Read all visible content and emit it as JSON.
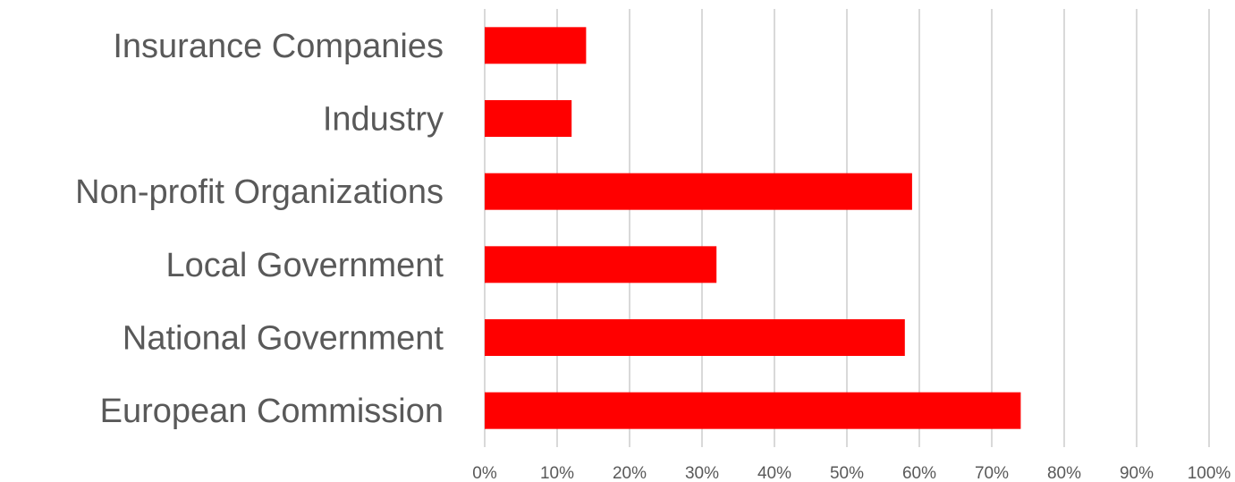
{
  "chart_data": {
    "type": "bar",
    "orientation": "horizontal",
    "categories": [
      "Insurance Companies",
      "Industry",
      "Non-profit Organizations",
      "Local Government",
      "National Government",
      "European Commission"
    ],
    "values": [
      14,
      12,
      59,
      32,
      58,
      74
    ],
    "unit": "%",
    "xlim": [
      0,
      100
    ],
    "x_ticks": [
      "0%",
      "10%",
      "20%",
      "30%",
      "40%",
      "50%",
      "60%",
      "70%",
      "80%",
      "90%",
      "100%"
    ],
    "grid": true,
    "legend": false,
    "bar_color": "#ff0000",
    "title": "",
    "xlabel": "",
    "ylabel": ""
  }
}
